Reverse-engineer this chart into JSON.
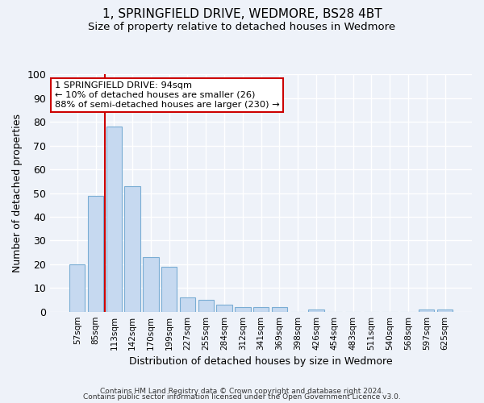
{
  "title": "1, SPRINGFIELD DRIVE, WEDMORE, BS28 4BT",
  "subtitle": "Size of property relative to detached houses in Wedmore",
  "xlabel": "Distribution of detached houses by size in Wedmore",
  "ylabel": "Number of detached properties",
  "bar_color": "#c6d9f0",
  "bar_edge_color": "#7aadd4",
  "bar_categories": [
    "57sqm",
    "85sqm",
    "113sqm",
    "142sqm",
    "170sqm",
    "199sqm",
    "227sqm",
    "255sqm",
    "284sqm",
    "312sqm",
    "341sqm",
    "369sqm",
    "398sqm",
    "426sqm",
    "454sqm",
    "483sqm",
    "511sqm",
    "540sqm",
    "568sqm",
    "597sqm",
    "625sqm"
  ],
  "bar_values": [
    20,
    49,
    78,
    53,
    23,
    19,
    6,
    5,
    3,
    2,
    2,
    2,
    0,
    1,
    0,
    0,
    0,
    0,
    0,
    1,
    1
  ],
  "ylim": [
    0,
    100
  ],
  "yticks": [
    0,
    10,
    20,
    30,
    40,
    50,
    60,
    70,
    80,
    90,
    100
  ],
  "red_line_x": 1.5,
  "annotation_title": "1 SPRINGFIELD DRIVE: 94sqm",
  "annotation_line1": "← 10% of detached houses are smaller (26)",
  "annotation_line2": "88% of semi-detached houses are larger (230) →",
  "annotation_box_color": "#ffffff",
  "annotation_box_edge_color": "#cc0000",
  "footer1": "Contains HM Land Registry data © Crown copyright and database right 2024.",
  "footer2": "Contains public sector information licensed under the Open Government Licence v3.0.",
  "background_color": "#eef2f9",
  "grid_color": "#ffffff",
  "red_line_color": "#cc0000"
}
